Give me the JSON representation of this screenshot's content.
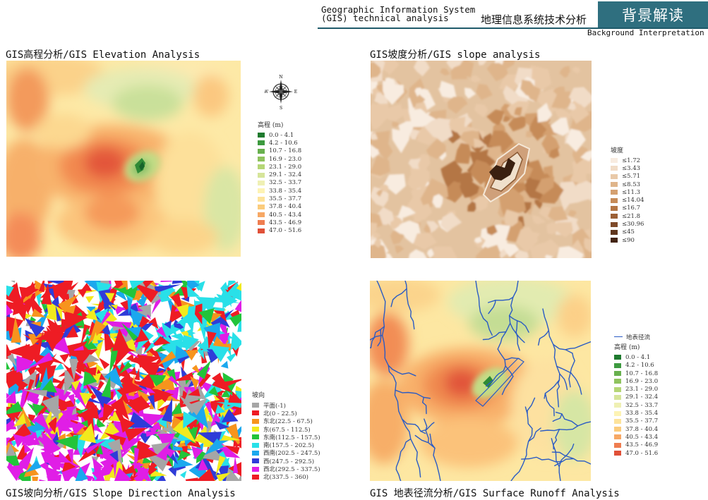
{
  "header": {
    "en_line1": "Geographic Information System",
    "en_line2": "(GIS) technical analysis",
    "cn_title": "地理信息系统技术分析",
    "badge": "背景解读",
    "subtitle": "Background Interpretation"
  },
  "panels": {
    "elevation": {
      "title": "GIS高程分析/GIS Elevation Analysis"
    },
    "slope": {
      "title": "GIS坡度分析/GIS slope analysis"
    },
    "aspect": {
      "title": "GIS坡向分析/GIS Slope Direction Analysis"
    },
    "runoff": {
      "title": "GIS 地表径流分析/GIS Surface Runoff Analysis"
    }
  },
  "compass": {
    "n": "N",
    "s": "S",
    "e": "E",
    "w": "W"
  },
  "elevation_legend": {
    "title": "高程 (m)",
    "items": [
      {
        "label": "0.0 - 4.1",
        "color": "#1e7a2e"
      },
      {
        "label": "4.2 - 10.6",
        "color": "#3d9a3f"
      },
      {
        "label": "10.7 - 16.8",
        "color": "#68b04e"
      },
      {
        "label": "16.9 - 23.0",
        "color": "#8fc35e"
      },
      {
        "label": "23.1 - 29.0",
        "color": "#b5d676"
      },
      {
        "label": "29.1 - 32.4",
        "color": "#d6e59a"
      },
      {
        "label": "32.5 - 33.7",
        "color": "#eff0b4"
      },
      {
        "label": "33.8 - 35.4",
        "color": "#fdf3b4"
      },
      {
        "label": "35.5 - 37.7",
        "color": "#fde39a"
      },
      {
        "label": "37.8 - 40.4",
        "color": "#fbcc7c"
      },
      {
        "label": "40.5 - 43.4",
        "color": "#f7a865"
      },
      {
        "label": "43.5 - 46.9",
        "color": "#ef7d50"
      },
      {
        "label": "47.0 - 51.6",
        "color": "#e05038"
      }
    ]
  },
  "slope_legend": {
    "title": "坡度",
    "items": [
      {
        "label": "≤1.72",
        "color": "#f8ece0"
      },
      {
        "label": "≤3.43",
        "color": "#f1dcc7"
      },
      {
        "label": "≤5.71",
        "color": "#e9c9a8"
      },
      {
        "label": "≤8.53",
        "color": "#dfb58b"
      },
      {
        "label": "≤11.3",
        "color": "#d4a070"
      },
      {
        "label": "≤14.04",
        "color": "#c68b58"
      },
      {
        "label": "≤16.7",
        "color": "#b47645"
      },
      {
        "label": "≤21.8",
        "color": "#9c6036"
      },
      {
        "label": "≤30.96",
        "color": "#7e4a29"
      },
      {
        "label": "≤45",
        "color": "#60361d"
      },
      {
        "label": "≤90",
        "color": "#432413"
      }
    ]
  },
  "aspect_legend": {
    "title": "坡向",
    "items": [
      {
        "label": "平面(-1)",
        "color": "#a6a6a6"
      },
      {
        "label": "北(0 - 22.5)",
        "color": "#ee1c24"
      },
      {
        "label": "东北(22.5 - 67.5)",
        "color": "#f7941d"
      },
      {
        "label": "东(67.5 - 112.5)",
        "color": "#f2ea1d"
      },
      {
        "label": "东南(112.5 - 157.5)",
        "color": "#22c43a"
      },
      {
        "label": "南(157.5 - 202.5)",
        "color": "#29e0e8"
      },
      {
        "label": "西南(202.5 - 247.5)",
        "color": "#1ba8ee"
      },
      {
        "label": "西(247.5 - 292.5)",
        "color": "#2f3cd8"
      },
      {
        "label": "西北(292.5 - 337.5)",
        "color": "#e01ee6"
      },
      {
        "label": "北(337.5 - 360)",
        "color": "#ee1c24"
      }
    ]
  },
  "runoff_legend": {
    "stream_label": "地表径流",
    "stream_color": "#2a5bc4",
    "title": "高程 (m)"
  }
}
